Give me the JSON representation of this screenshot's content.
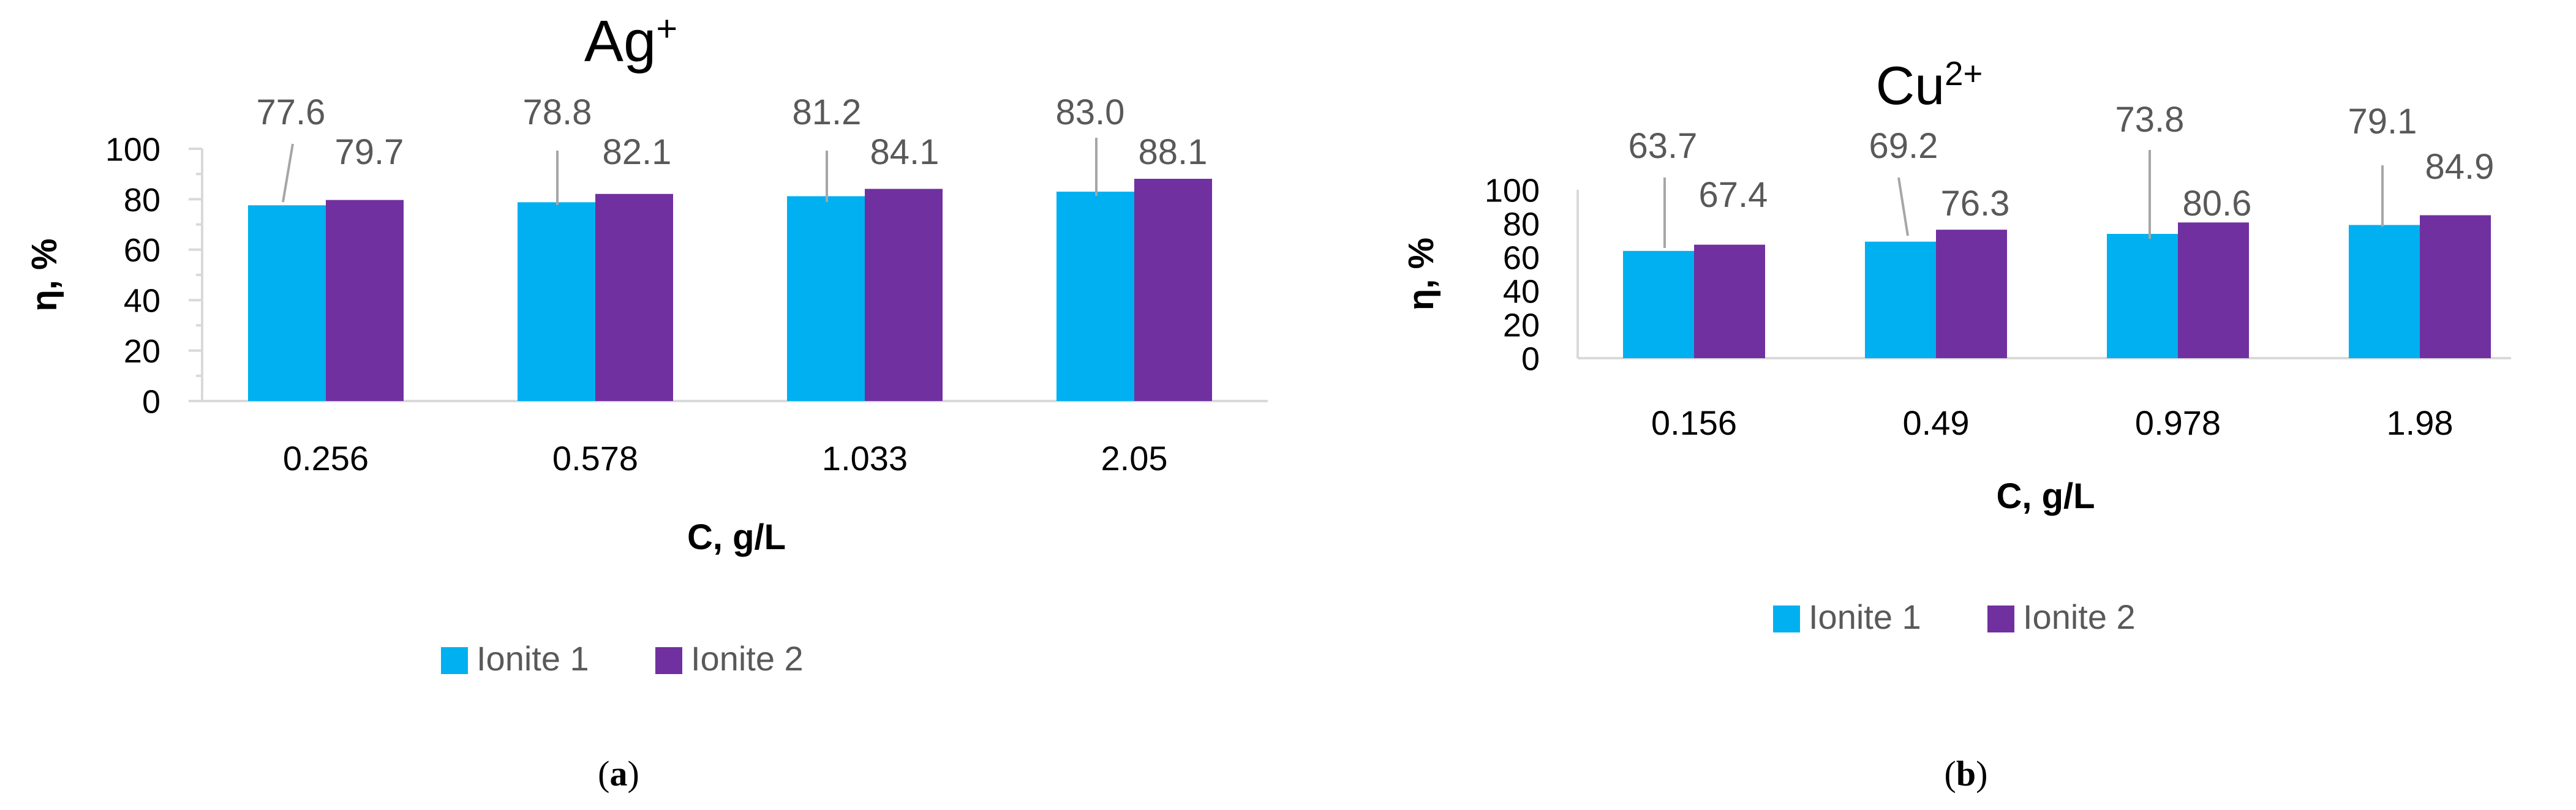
{
  "colors": {
    "ionite1": "#00B0F0",
    "ionite2": "#7030A0",
    "axis": "#D9D9D9",
    "leader": "#A6A6A6",
    "text": "#595959"
  },
  "legend": {
    "ionite1": "Ionite 1",
    "ionite2": "Ionite 2"
  },
  "chart_data": [
    {
      "type": "bar",
      "panel": "a",
      "title": "Ag",
      "title_sup": "+",
      "caption": "(a)",
      "xlabel": "C, g/L",
      "ylabel": "η, %",
      "ylim": [
        0,
        100
      ],
      "yticks": [
        0,
        20,
        40,
        60,
        80,
        100
      ],
      "ytick_labels": [
        "0",
        "20",
        "40",
        "60",
        "80",
        "100"
      ],
      "categories": [
        "0.256",
        "0.578",
        "1.033",
        "2.05"
      ],
      "series": [
        {
          "name": "Ionite 1",
          "values": [
            77.6,
            78.8,
            81.2,
            83.0
          ],
          "labels": [
            "77.6",
            "78.8",
            "81.2",
            "83.0"
          ]
        },
        {
          "name": "Ionite 2",
          "values": [
            79.7,
            82.1,
            84.1,
            88.1
          ],
          "labels": [
            "79.7",
            "82.1",
            "84.1",
            "88.1"
          ]
        }
      ],
      "legend_position": "bottom",
      "grid": false
    },
    {
      "type": "bar",
      "panel": "b",
      "title": "Cu",
      "title_sup": "2+",
      "caption": "(b)",
      "xlabel": "C, g/L",
      "ylabel": "η, %",
      "ylim": [
        0,
        100
      ],
      "yticks": [
        0,
        20,
        40,
        60,
        80,
        100
      ],
      "ytick_labels": [
        "0",
        "20",
        "40",
        "60",
        "80",
        "100"
      ],
      "categories": [
        "0.156",
        "0.49",
        "0.978",
        "1.98"
      ],
      "series": [
        {
          "name": "Ionite 1",
          "values": [
            63.7,
            69.2,
            73.8,
            79.1
          ],
          "labels": [
            "63.7",
            "69.2",
            "73.8",
            "79.1"
          ]
        },
        {
          "name": "Ionite 2",
          "values": [
            67.4,
            76.3,
            80.6,
            84.9
          ],
          "labels": [
            "67.4",
            "76.3",
            "80.6",
            "84.9"
          ]
        }
      ],
      "legend_position": "bottom",
      "grid": false
    }
  ]
}
